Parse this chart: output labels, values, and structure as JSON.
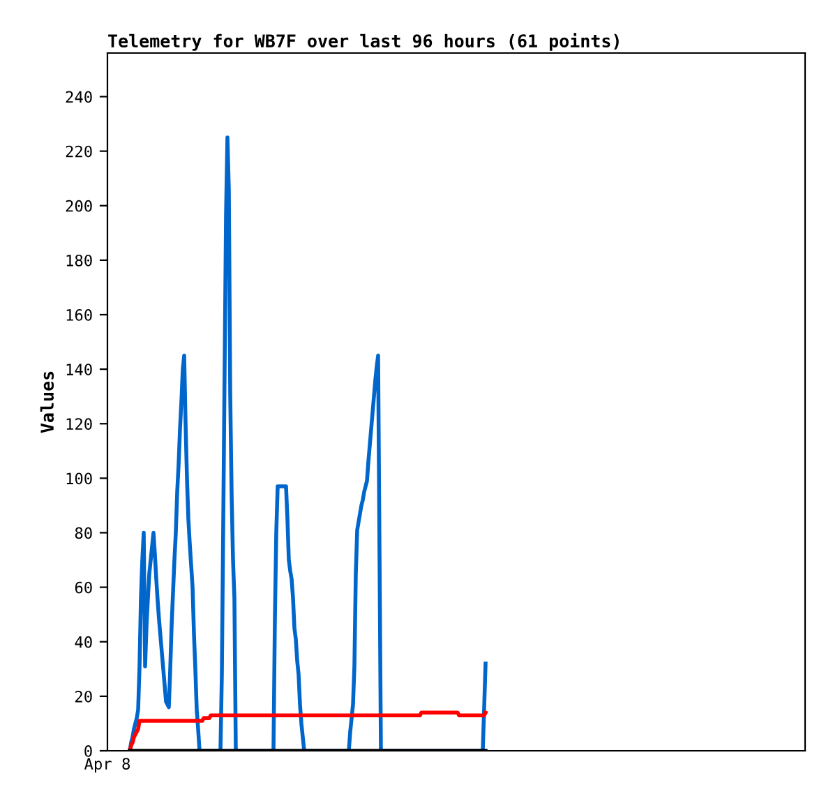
{
  "chart_data": {
    "type": "line",
    "title": "Telemetry for WB7F over last 96 hours (61 points)",
    "ylabel": "Values",
    "categories": [
      "Apr 8",
      null,
      null,
      null,
      null,
      null,
      null,
      null,
      null,
      null,
      null,
      null,
      null,
      null,
      null,
      null,
      null,
      null,
      null,
      null,
      null,
      null,
      null,
      null,
      null,
      null,
      null,
      null,
      null,
      null,
      null,
      null,
      null,
      null,
      null,
      null,
      null,
      null,
      null,
      null,
      null,
      null,
      null,
      null,
      null,
      null,
      null,
      null,
      null,
      null,
      null,
      null,
      null,
      null,
      null,
      null,
      null,
      null,
      null,
      null,
      null,
      null,
      null,
      null,
      null,
      null,
      null,
      null,
      null,
      null,
      null,
      null,
      null,
      null,
      null,
      null,
      null,
      null,
      null,
      null,
      null,
      null,
      null,
      null,
      null,
      null,
      null,
      null,
      null,
      null,
      null,
      null,
      null,
      null,
      null,
      null,
      null,
      null,
      null,
      null,
      null,
      null,
      null,
      null,
      null,
      null,
      null,
      null,
      null,
      null,
      null,
      null,
      null,
      null,
      null,
      null,
      null,
      null,
      null,
      null,
      null,
      null,
      null,
      null,
      null,
      null,
      null,
      null,
      null,
      null,
      null,
      null,
      null,
      null,
      null,
      null,
      null,
      null,
      null,
      null,
      null,
      null,
      null,
      null,
      null,
      null,
      null,
      null,
      null,
      null,
      null,
      null,
      null,
      null,
      null,
      null,
      null,
      null,
      null,
      null,
      null,
      null,
      null,
      null,
      null,
      null,
      null,
      null,
      null,
      null,
      null,
      null,
      null,
      null,
      null,
      null,
      null,
      null,
      null,
      null,
      null,
      null,
      null,
      null,
      null,
      null,
      null,
      null,
      null,
      null,
      null,
      null,
      null,
      null,
      null,
      null,
      null,
      null,
      null,
      null,
      null,
      null,
      null,
      null,
      null,
      null,
      null,
      null,
      null,
      null,
      null,
      null,
      null,
      null,
      null,
      null,
      null,
      null,
      null,
      null,
      null,
      null,
      null,
      null,
      null,
      null,
      null,
      null,
      null,
      null,
      null,
      null,
      null,
      null,
      null,
      null,
      null,
      null,
      null,
      null,
      null,
      null,
      null,
      null,
      null,
      null,
      null,
      null,
      null,
      null,
      null,
      null,
      null,
      null,
      null,
      null,
      null,
      null,
      null,
      null,
      null,
      null,
      null,
      null,
      null,
      null,
      null,
      null,
      null,
      null,
      null,
      null,
      null,
      null,
      null,
      null,
      null,
      null,
      null,
      null,
      null,
      null,
      null,
      null,
      null,
      null,
      null,
      null,
      null,
      null,
      null,
      null,
      null,
      null,
      null,
      null,
      null,
      null,
      null,
      null,
      null,
      null,
      null,
      null,
      null,
      null,
      null,
      null,
      null,
      null,
      null,
      null,
      null,
      null,
      null,
      null,
      null,
      null,
      null,
      null,
      null,
      null,
      null,
      null,
      null,
      null,
      null,
      null,
      null,
      null,
      null,
      null,
      null,
      null,
      null,
      null,
      null,
      null,
      null,
      null,
      null,
      null,
      null,
      null,
      null,
      null,
      null,
      null,
      null,
      null,
      null,
      null,
      null,
      null,
      null,
      null,
      null,
      null,
      null,
      null,
      null,
      null,
      null,
      null,
      null,
      null,
      null,
      null,
      null,
      null,
      null,
      null,
      null,
      null,
      null,
      null,
      null,
      null,
      null,
      null,
      null,
      null,
      null,
      null,
      null,
      null,
      null,
      null,
      null,
      null,
      null,
      null,
      null,
      null,
      null,
      null,
      null,
      null,
      null,
      null,
      null,
      null,
      null,
      null,
      null,
      null,
      null,
      null,
      null,
      null,
      null,
      null,
      null,
      null,
      null,
      null,
      null,
      null,
      null,
      null,
      null,
      null,
      null,
      null,
      null,
      null,
      null,
      null,
      null,
      null,
      null,
      null,
      null,
      null,
      null,
      null,
      null,
      null,
      null,
      null,
      null,
      null,
      null,
      null,
      null,
      null,
      null,
      null,
      null,
      null,
      null,
      null,
      null,
      null,
      null,
      null,
      null,
      null,
      null,
      null,
      null,
      null,
      null,
      null,
      null,
      null,
      null,
      null,
      null,
      null,
      null,
      null,
      null,
      null,
      null,
      null,
      null,
      null,
      null,
      null,
      null,
      null,
      null,
      null,
      null,
      null,
      null,
      null,
      null,
      null,
      null,
      null,
      null,
      null,
      null,
      null,
      null,
      null,
      null,
      null,
      null
    ],
    "ylim": [
      0,
      256
    ],
    "yticks": [
      0,
      20,
      40,
      60,
      80,
      100,
      120,
      140,
      160,
      180,
      200,
      220,
      240
    ],
    "grid": false,
    "legend": false,
    "marker": "none",
    "line_style": "solid",
    "series": [
      {
        "color": "#0066cc",
        "values": [
          null,
          null,
          null,
          null,
          null,
          null,
          null,
          null,
          null,
          null,
          null,
          null,
          null,
          null,
          null,
          null,
          0,
          3,
          5,
          8,
          10,
          12,
          15,
          31,
          56,
          70,
          80,
          31,
          46,
          56,
          65,
          70,
          75,
          80,
          72,
          63,
          55,
          48,
          42,
          36,
          30,
          24,
          18,
          17,
          16,
          30,
          46,
          58,
          70,
          80,
          95,
          105,
          118,
          128,
          140,
          145,
          120,
          100,
          85,
          76,
          68,
          60,
          43,
          30,
          15,
          8,
          0,
          0,
          0,
          0,
          0,
          0,
          0,
          0,
          0,
          0,
          0,
          0,
          0,
          0,
          0,
          0,
          28,
          84,
          141,
          197,
          225,
          206,
          131,
          94,
          70,
          56,
          0,
          0,
          0,
          0,
          0,
          0,
          0,
          0,
          0,
          0,
          0,
          0,
          0,
          0,
          0,
          0,
          0,
          0,
          0,
          0,
          0,
          0,
          0,
          0,
          0,
          0,
          0,
          0,
          48,
          80,
          97,
          97,
          97,
          97,
          97,
          97,
          97,
          85,
          70,
          66,
          63,
          56,
          45,
          41,
          33,
          28,
          17,
          10,
          5,
          0,
          0,
          0,
          0,
          0,
          0,
          0,
          0,
          0,
          0,
          0,
          0,
          0,
          0,
          0,
          0,
          0,
          0,
          0,
          0,
          0,
          0,
          0,
          0,
          0,
          0,
          0,
          0,
          0,
          0,
          0,
          0,
          0,
          7,
          12,
          17,
          31,
          65,
          81,
          84,
          87,
          90,
          92,
          95,
          97,
          99,
          106,
          112,
          118,
          124,
          130,
          136,
          141,
          145,
          72,
          0,
          0,
          0,
          0,
          0,
          0,
          0,
          0,
          0,
          0,
          0,
          0,
          0,
          0,
          0,
          0,
          0,
          0,
          0,
          0,
          0,
          0,
          0,
          0,
          0,
          0,
          0,
          0,
          0,
          0,
          0,
          0,
          0,
          0,
          0,
          0,
          0,
          0,
          0,
          0,
          0,
          0,
          0,
          0,
          0,
          0,
          0,
          0,
          0,
          0,
          0,
          0,
          0,
          0,
          0,
          0,
          0,
          0,
          0,
          0,
          0,
          0,
          0,
          0,
          0,
          0,
          0,
          0,
          0,
          0,
          0,
          0,
          0,
          0,
          16,
          32,
          null,
          null,
          null,
          null,
          null,
          null,
          null,
          null,
          null,
          null,
          null,
          null,
          null,
          null,
          null,
          null,
          null,
          null,
          null,
          null,
          null,
          null,
          null,
          null,
          null,
          null,
          null,
          null,
          null,
          null,
          null,
          null,
          null,
          null,
          null,
          null,
          null,
          null,
          null,
          null,
          null,
          null,
          null,
          null,
          null,
          null,
          null,
          null,
          null,
          null,
          null,
          null,
          null,
          null,
          null,
          null,
          null,
          null,
          null,
          null,
          null,
          null,
          null,
          null,
          null,
          null,
          null,
          null,
          null,
          null,
          null,
          null,
          null,
          null,
          null,
          null,
          null,
          null,
          null,
          null,
          null,
          null,
          null,
          null,
          null,
          null,
          null,
          null,
          null,
          null,
          null,
          null,
          null,
          null,
          null,
          null,
          null,
          null,
          null,
          null,
          null,
          null,
          null,
          null,
          null,
          null,
          null,
          null,
          null,
          null,
          null,
          null,
          null,
          null,
          null,
          null,
          null,
          null,
          null,
          null,
          null,
          null,
          null,
          null,
          null,
          null,
          null,
          null,
          null,
          null,
          null,
          null,
          null,
          null,
          null,
          null,
          null,
          null,
          null,
          null,
          null,
          null,
          null,
          null,
          null,
          null,
          null,
          null,
          null,
          null,
          null,
          null,
          null,
          null,
          null,
          null,
          null,
          null,
          null,
          null,
          null,
          null,
          null,
          null,
          null,
          null,
          null,
          null,
          null,
          null,
          null,
          null,
          null,
          null,
          null,
          null,
          null,
          null,
          null,
          null,
          null,
          null,
          null,
          null,
          null,
          null,
          null,
          null,
          null,
          null,
          null,
          null,
          null,
          null,
          null,
          null,
          null,
          null,
          null,
          null,
          null,
          null,
          null,
          null,
          null,
          null,
          null,
          null,
          null,
          null,
          null,
          null,
          null,
          null,
          null,
          null,
          null,
          null,
          null,
          null,
          null,
          null,
          null,
          null,
          null,
          null,
          null,
          null,
          null
        ]
      },
      {
        "color": "#ff0000",
        "values": [
          null,
          null,
          null,
          null,
          null,
          null,
          null,
          null,
          null,
          null,
          null,
          null,
          null,
          null,
          null,
          null,
          0,
          2,
          3,
          5,
          6,
          7,
          8,
          11,
          11,
          11,
          11,
          11,
          11,
          11,
          11,
          11,
          11,
          11,
          11,
          11,
          11,
          11,
          11,
          11,
          11,
          11,
          11,
          11,
          11,
          11,
          11,
          11,
          11,
          11,
          11,
          11,
          11,
          11,
          11,
          11,
          11,
          11,
          11,
          11,
          11,
          11,
          11,
          11,
          11,
          11,
          11,
          11,
          11,
          12,
          12,
          12,
          12,
          12,
          13,
          13,
          13,
          13,
          13,
          13,
          13,
          13,
          13,
          13,
          13,
          13,
          13,
          13,
          13,
          13,
          13,
          13,
          13,
          13,
          13,
          13,
          13,
          13,
          13,
          13,
          13,
          13,
          13,
          13,
          13,
          13,
          13,
          13,
          13,
          13,
          13,
          13,
          13,
          13,
          13,
          13,
          13,
          13,
          13,
          13,
          13,
          13,
          13,
          13,
          13,
          13,
          13,
          13,
          13,
          13,
          13,
          13,
          13,
          13,
          13,
          13,
          13,
          13,
          13,
          13,
          13,
          13,
          13,
          13,
          13,
          13,
          13,
          13,
          13,
          13,
          13,
          13,
          13,
          13,
          13,
          13,
          13,
          13,
          13,
          13,
          13,
          13,
          13,
          13,
          13,
          13,
          13,
          13,
          13,
          13,
          13,
          13,
          13,
          13,
          13,
          13,
          13,
          13,
          13,
          13,
          13,
          13,
          13,
          13,
          13,
          13,
          13,
          13,
          13,
          13,
          13,
          13,
          13,
          13,
          13,
          13,
          13,
          13,
          13,
          13,
          13,
          13,
          13,
          13,
          13,
          13,
          13,
          13,
          13,
          13,
          13,
          13,
          13,
          13,
          13,
          13,
          13,
          13,
          13,
          13,
          13,
          13,
          13,
          13,
          13,
          14,
          14,
          14,
          14,
          14,
          14,
          14,
          14,
          14,
          14,
          14,
          14,
          14,
          14,
          14,
          14,
          14,
          14,
          14,
          14,
          14,
          14,
          14,
          14,
          14,
          14,
          14,
          13,
          13,
          13,
          13,
          13,
          13,
          13,
          13,
          13,
          13,
          13,
          13,
          13,
          13,
          13,
          13,
          13,
          13,
          13,
          14,
          null,
          null,
          null,
          null,
          null,
          null,
          null,
          null,
          null,
          null,
          null,
          null,
          null,
          null,
          null,
          null,
          null,
          null,
          null,
          null,
          null,
          null,
          null,
          null,
          null,
          null,
          null,
          null,
          null,
          null,
          null,
          null,
          null,
          null,
          null,
          null,
          null,
          null,
          null,
          null,
          null,
          null,
          null,
          null,
          null,
          null,
          null,
          null,
          null,
          null,
          null,
          null,
          null,
          null,
          null,
          null,
          null,
          null,
          null,
          null,
          null,
          null,
          null,
          null,
          null,
          null,
          null,
          null,
          null,
          null,
          null,
          null,
          null,
          null,
          null,
          null,
          null,
          null,
          null,
          null,
          null,
          null,
          null,
          null,
          null,
          null,
          null,
          null,
          null,
          null,
          null,
          null,
          null,
          null,
          null,
          null,
          null,
          null,
          null,
          null,
          null,
          null,
          null,
          null,
          null,
          null,
          null,
          null,
          null,
          null,
          null,
          null,
          null,
          null,
          null,
          null,
          null,
          null,
          null,
          null,
          null,
          null,
          null,
          null,
          null,
          null,
          null,
          null,
          null,
          null,
          null,
          null,
          null,
          null,
          null,
          null,
          null,
          null,
          null,
          null,
          null,
          null,
          null,
          null,
          null,
          null,
          null,
          null,
          null,
          null,
          null,
          null,
          null,
          null,
          null,
          null,
          null,
          null,
          null,
          null,
          null,
          null,
          null,
          null,
          null,
          null,
          null,
          null,
          null,
          null,
          null,
          null,
          null,
          null,
          null,
          null,
          null,
          null,
          null,
          null,
          null,
          null,
          null,
          null,
          null,
          null,
          null,
          null,
          null,
          null,
          null,
          null,
          null,
          null,
          null,
          null,
          null,
          null,
          null,
          null,
          null,
          null,
          null,
          null,
          null,
          null,
          null,
          null,
          null,
          null,
          null,
          null,
          null,
          null,
          null,
          null,
          null,
          null,
          null,
          null,
          null,
          null,
          null,
          null,
          null,
          null,
          null,
          null,
          null
        ]
      },
      {
        "color": "#000000",
        "values": [
          null,
          null,
          null,
          null,
          null,
          null,
          null,
          null,
          null,
          null,
          null,
          null,
          null,
          null,
          null,
          null,
          0,
          0,
          0,
          0,
          0,
          0,
          0,
          0,
          0,
          0,
          0,
          0,
          0,
          0,
          0,
          0,
          0,
          0,
          0,
          0,
          0,
          0,
          0,
          0,
          0,
          0,
          0,
          0,
          0,
          0,
          0,
          0,
          0,
          0,
          0,
          0,
          0,
          0,
          0,
          0,
          0,
          0,
          0,
          0,
          0,
          0,
          0,
          0,
          0,
          0,
          0,
          0,
          0,
          0,
          0,
          0,
          0,
          0,
          0,
          0,
          0,
          0,
          0,
          0,
          0,
          0,
          0,
          0,
          0,
          0,
          0,
          0,
          0,
          0,
          0,
          0,
          0,
          0,
          0,
          0,
          0,
          0,
          0,
          0,
          0,
          0,
          0,
          0,
          0,
          0,
          0,
          0,
          0,
          0,
          0,
          0,
          0,
          0,
          0,
          0,
          0,
          0,
          0,
          0,
          0,
          0,
          0,
          0,
          0,
          0,
          0,
          0,
          0,
          0,
          0,
          0,
          0,
          0,
          0,
          0,
          0,
          0,
          0,
          0,
          0,
          0,
          0,
          0,
          0,
          0,
          0,
          0,
          0,
          0,
          0,
          0,
          0,
          0,
          0,
          0,
          0,
          0,
          0,
          0,
          0,
          0,
          0,
          0,
          0,
          0,
          0,
          0,
          0,
          0,
          0,
          0,
          0,
          0,
          0,
          0,
          0,
          0,
          0,
          0,
          0,
          0,
          0,
          0,
          0,
          0,
          0,
          0,
          0,
          0,
          0,
          0,
          0,
          0,
          0,
          0,
          0,
          0,
          0,
          0,
          0,
          0,
          0,
          0,
          0,
          0,
          0,
          0,
          0,
          0,
          0,
          0,
          0,
          0,
          0,
          0,
          0,
          0,
          0,
          0,
          0,
          0,
          0,
          0,
          0,
          0,
          0,
          0,
          0,
          0,
          0,
          0,
          0,
          0,
          0,
          0,
          0,
          0,
          0,
          0,
          0,
          0,
          0,
          0,
          0,
          0,
          0,
          0,
          0,
          0,
          0,
          0,
          0,
          0,
          0,
          0,
          0,
          0,
          0,
          0,
          0,
          0,
          0,
          0,
          0,
          0,
          0,
          0,
          0,
          0,
          0,
          0,
          null,
          null,
          null,
          null,
          null,
          null,
          null,
          null,
          null,
          null,
          null,
          null,
          null,
          null,
          null,
          null,
          null,
          null,
          null,
          null,
          null,
          null,
          null,
          null,
          null,
          null,
          null,
          null,
          null,
          null,
          null,
          null,
          null,
          null,
          null,
          null,
          null,
          null,
          null,
          null,
          null,
          null,
          null,
          null,
          null,
          null,
          null,
          null,
          null,
          null,
          null,
          null,
          null,
          null,
          null,
          null,
          null,
          null,
          null,
          null,
          null,
          null,
          null,
          null,
          null,
          null,
          null,
          null,
          null,
          null,
          null,
          null,
          null,
          null,
          null,
          null,
          null,
          null,
          null,
          null,
          null,
          null,
          null,
          null,
          null,
          null,
          null,
          null,
          null,
          null,
          null,
          null,
          null,
          null,
          null,
          null,
          null,
          null,
          null,
          null,
          null,
          null,
          null,
          null,
          null,
          null,
          null,
          null,
          null,
          null,
          null,
          null,
          null,
          null,
          null,
          null,
          null,
          null,
          null,
          null,
          null,
          null,
          null,
          null,
          null,
          null,
          null,
          null,
          null,
          null,
          null,
          null,
          null,
          null,
          null,
          null,
          null,
          null,
          null,
          null,
          null,
          null,
          null,
          null,
          null,
          null,
          null,
          null,
          null,
          null,
          null,
          null,
          null,
          null,
          null,
          null,
          null,
          null,
          null,
          null,
          null,
          null,
          null,
          null,
          null,
          null,
          null,
          null,
          null,
          null,
          null,
          null,
          null,
          null,
          null,
          null,
          null,
          null,
          null,
          null,
          null,
          null,
          null,
          null,
          null,
          null,
          null,
          null,
          null,
          null,
          null,
          null,
          null,
          null,
          null,
          null,
          null,
          null,
          null,
          null,
          null,
          null,
          null,
          null,
          null,
          null,
          null,
          null,
          null,
          null,
          null,
          null,
          null,
          null,
          null,
          null,
          null,
          null,
          null,
          null,
          null,
          null,
          null,
          null,
          null,
          null,
          null,
          null,
          null
        ]
      }
    ]
  }
}
